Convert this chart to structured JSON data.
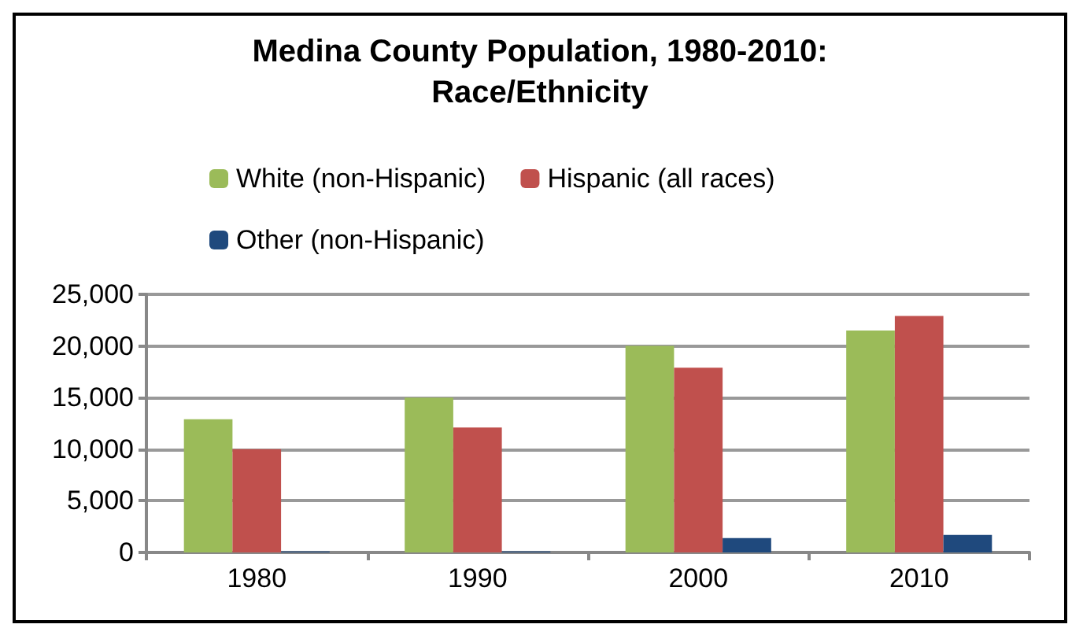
{
  "chart_data": {
    "type": "bar",
    "title": "Medina County Population, 1980-2010:\nRace/Ethnicity",
    "categories": [
      "1980",
      "1990",
      "2000",
      "2010"
    ],
    "series": [
      {
        "name": "White (non-Hispanic)",
        "color": "#9bbb59",
        "values": [
          12900,
          15000,
          20000,
          21500
        ]
      },
      {
        "name": "Hispanic (all races)",
        "color": "#c0504d",
        "values": [
          10000,
          12100,
          17900,
          22900
        ]
      },
      {
        "name": "Other (non-Hispanic)",
        "color": "#1f497d",
        "values": [
          100,
          100,
          1400,
          1700
        ]
      }
    ],
    "ylim": [
      0,
      25000
    ],
    "yticks": [
      0,
      {
        "value": 5000,
        "label": "5,000"
      },
      {
        "value": 10000,
        "label": "10,000"
      },
      {
        "value": 15000,
        "label": "15,000"
      },
      {
        "value": 20000,
        "label": "20,000"
      },
      {
        "value": 25000,
        "label": "25,000"
      }
    ],
    "grid": "y",
    "legend": "top"
  }
}
